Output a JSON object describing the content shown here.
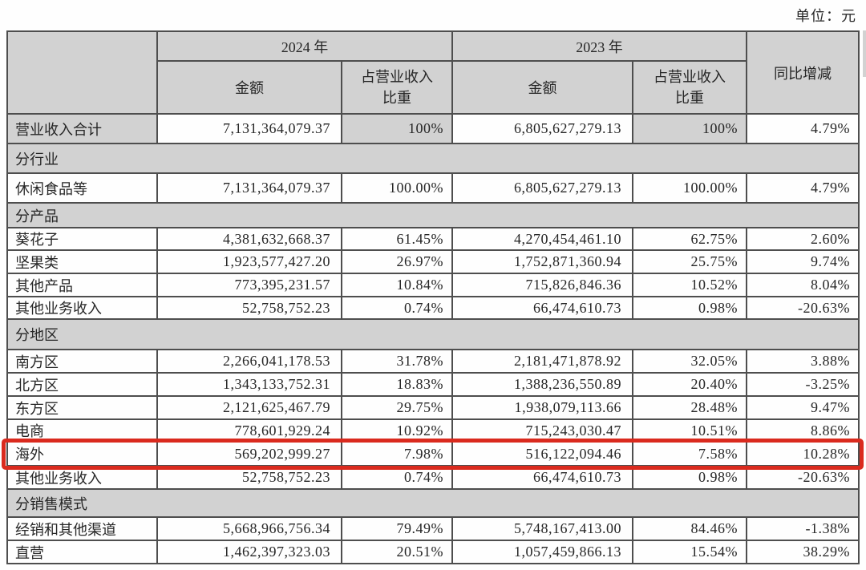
{
  "unit_label": "单位：元",
  "highlight": {
    "row_label": "海外",
    "color": "#da2a1e"
  },
  "table": {
    "headers": {
      "year_2024": "2024 年",
      "year_2023": "2023 年",
      "amount_2024": "金额",
      "amount_2023": "金额",
      "share_2024_line1": "占营业收入",
      "share_2024_line2": "比重",
      "share_2023_line1": "占营业收入",
      "share_2023_line2": "比重",
      "yoy": "同比增减"
    },
    "rows": [
      {
        "type": "data",
        "emphasis": true,
        "label": "营业收入合计",
        "amount_2024": "7,131,364,079.37",
        "share_2024": "100%",
        "amount_2023": "6,805,627,279.13",
        "share_2023": "100%",
        "yoy": "4.79%"
      },
      {
        "type": "section",
        "label": "分行业"
      },
      {
        "type": "data",
        "label": "休闲食品等",
        "amount_2024": "7,131,364,079.37",
        "share_2024": "100.00%",
        "amount_2023": "6,805,627,279.13",
        "share_2023": "100.00%",
        "yoy": "4.79%"
      },
      {
        "type": "section",
        "label": "分产品"
      },
      {
        "type": "data",
        "label": "葵花子",
        "amount_2024": "4,381,632,668.37",
        "share_2024": "61.45%",
        "amount_2023": "4,270,454,461.10",
        "share_2023": "62.75%",
        "yoy": "2.60%"
      },
      {
        "type": "data",
        "label": "坚果类",
        "amount_2024": "1,923,577,427.20",
        "share_2024": "26.97%",
        "amount_2023": "1,752,871,360.94",
        "share_2023": "25.75%",
        "yoy": "9.74%"
      },
      {
        "type": "data",
        "label": "其他产品",
        "amount_2024": "773,395,231.57",
        "share_2024": "10.84%",
        "amount_2023": "715,826,846.36",
        "share_2023": "10.52%",
        "yoy": "8.04%"
      },
      {
        "type": "data",
        "label": "其他业务收入",
        "amount_2024": "52,758,752.23",
        "share_2024": "0.74%",
        "amount_2023": "66,474,610.73",
        "share_2023": "0.98%",
        "yoy": "-20.63%"
      },
      {
        "type": "section",
        "label": "分地区"
      },
      {
        "type": "data",
        "label": "南方区",
        "amount_2024": "2,266,041,178.53",
        "share_2024": "31.78%",
        "amount_2023": "2,181,471,878.92",
        "share_2023": "32.05%",
        "yoy": "3.88%"
      },
      {
        "type": "data",
        "label": "北方区",
        "amount_2024": "1,343,133,752.31",
        "share_2024": "18.83%",
        "amount_2023": "1,388,236,550.89",
        "share_2023": "20.40%",
        "yoy": "-3.25%"
      },
      {
        "type": "data",
        "label": "东方区",
        "amount_2024": "2,121,625,467.79",
        "share_2024": "29.75%",
        "amount_2023": "1,938,079,113.66",
        "share_2023": "28.48%",
        "yoy": "9.47%"
      },
      {
        "type": "data",
        "label": "电商",
        "amount_2024": "778,601,929.24",
        "share_2024": "10.92%",
        "amount_2023": "715,243,030.47",
        "share_2023": "10.51%",
        "yoy": "8.86%"
      },
      {
        "type": "data",
        "label": "海外",
        "highlighted": true,
        "amount_2024": "569,202,999.27",
        "share_2024": "7.98%",
        "amount_2023": "516,122,094.46",
        "share_2023": "7.58%",
        "yoy": "10.28%"
      },
      {
        "type": "data",
        "label": "其他业务收入",
        "amount_2024": "52,758,752.23",
        "share_2024": "0.74%",
        "amount_2023": "66,474,610.73",
        "share_2023": "0.98%",
        "yoy": "-20.63%"
      },
      {
        "type": "section",
        "label": "分销售模式"
      },
      {
        "type": "data",
        "label": "经销和其他渠道",
        "amount_2024": "5,668,966,756.34",
        "share_2024": "79.49%",
        "amount_2023": "5,748,167,413.00",
        "share_2023": "84.46%",
        "yoy": "-1.38%"
      },
      {
        "type": "data",
        "label": "直营",
        "amount_2024": "1,462,397,323.03",
        "share_2024": "20.51%",
        "amount_2023": "1,057,459,866.13",
        "share_2023": "15.54%",
        "yoy": "38.29%"
      }
    ]
  }
}
